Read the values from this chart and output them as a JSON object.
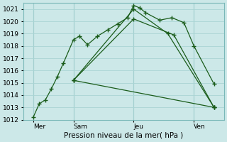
{
  "xlabel": "Pression niveau de la mer( hPa )",
  "background_color": "#cce8e8",
  "grid_color": "#aad4d4",
  "line_color": "#1a5c1a",
  "ylim": [
    1012,
    1021.5
  ],
  "yticks": [
    1012,
    1013,
    1014,
    1015,
    1016,
    1017,
    1018,
    1019,
    1020,
    1021
  ],
  "xlim": [
    0,
    10
  ],
  "xtick_labels": [
    "Mer",
    "Sam",
    "Jeu",
    "Ven"
  ],
  "xtick_positions": [
    0.5,
    2.5,
    5.5,
    8.5
  ],
  "vline_positions": [
    0.5,
    2.5,
    5.5,
    8.5
  ],
  "series": [
    {
      "x": [
        0.5,
        0.8,
        1.1,
        1.4,
        1.7,
        2.0,
        2.5,
        2.8,
        3.2,
        3.7,
        4.2,
        4.7,
        5.2,
        5.5,
        5.8,
        6.1,
        6.8,
        7.4,
        8.0,
        8.5,
        9.5
      ],
      "y": [
        1012.2,
        1013.3,
        1013.6,
        1014.5,
        1015.5,
        1016.6,
        1018.5,
        1018.8,
        1018.1,
        1018.8,
        1019.3,
        1019.8,
        1020.3,
        1021.3,
        1021.1,
        1020.7,
        1020.1,
        1020.3,
        1019.9,
        1018.0,
        1014.9
      ]
    },
    {
      "x": [
        2.5,
        5.5,
        7.2,
        9.5
      ],
      "y": [
        1015.2,
        1021.0,
        1019.0,
        1013.0
      ]
    },
    {
      "x": [
        2.5,
        5.5,
        7.5,
        9.5
      ],
      "y": [
        1015.2,
        1020.2,
        1018.9,
        1013.0
      ]
    },
    {
      "x": [
        2.5,
        9.5
      ],
      "y": [
        1015.2,
        1013.0
      ]
    }
  ],
  "figsize": [
    3.2,
    2.0
  ],
  "dpi": 100
}
